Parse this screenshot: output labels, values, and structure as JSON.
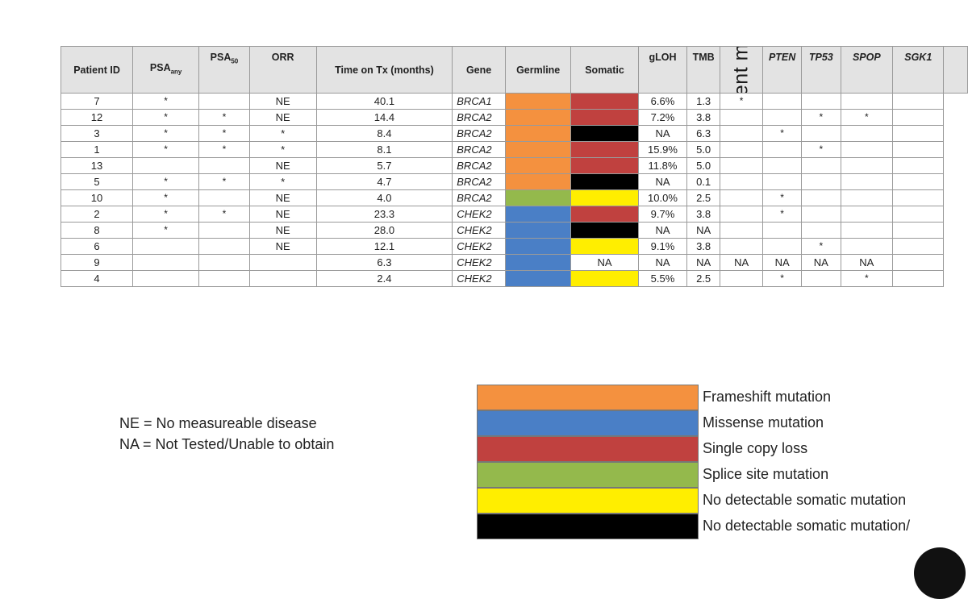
{
  "table": {
    "headers": {
      "patient_id": "Patient ID",
      "psa_any": "PSA",
      "psa_any_sub": "any",
      "psa50": "PSA",
      "psa50_sub": "50",
      "orr": "ORR",
      "time_on_tx": "Time on Tx (months)",
      "gene": "Gene",
      "germline": "Germline",
      "somatic": "Somatic",
      "gloh": "gLOH",
      "tmb": "TMB",
      "concurrent": "Concurrent mutations",
      "pten": "PTEN",
      "tp53": "TP53",
      "spop": "SPOP",
      "sgk1": "SGK1"
    },
    "rows": [
      {
        "id": "7",
        "psa_any": "*",
        "psa50": "",
        "orr": "NE",
        "time": "40.1",
        "gene": "BRCA1",
        "germline": "frameshift",
        "somatic": "single_copy_loss",
        "somatic_text": "",
        "gloh": "6.6%",
        "tmb": "1.3",
        "pten": "*",
        "tp53": "",
        "spop": "",
        "sgk1": ""
      },
      {
        "id": "12",
        "psa_any": "*",
        "psa50": "*",
        "orr": "NE",
        "time": "14.4",
        "gene": "BRCA2",
        "germline": "frameshift",
        "somatic": "single_copy_loss",
        "somatic_text": "",
        "gloh": "7.2%",
        "tmb": "3.8",
        "pten": "",
        "tp53": "",
        "spop": "*",
        "sgk1": "*"
      },
      {
        "id": "3",
        "psa_any": "*",
        "psa50": "*",
        "orr": "*",
        "time": "8.4",
        "gene": "BRCA2",
        "germline": "frameshift",
        "somatic": "no_detectable_2",
        "somatic_text": "",
        "gloh": "NA",
        "tmb": "6.3",
        "pten": "",
        "tp53": "*",
        "spop": "",
        "sgk1": ""
      },
      {
        "id": "1",
        "psa_any": "*",
        "psa50": "*",
        "orr": "*",
        "time": "8.1",
        "gene": "BRCA2",
        "germline": "frameshift",
        "somatic": "single_copy_loss",
        "somatic_text": "",
        "gloh": "15.9%",
        "tmb": "5.0",
        "pten": "",
        "tp53": "",
        "spop": "*",
        "sgk1": ""
      },
      {
        "id": "13",
        "psa_any": "",
        "psa50": "",
        "orr": "NE",
        "time": "5.7",
        "gene": "BRCA2",
        "germline": "frameshift",
        "somatic": "single_copy_loss",
        "somatic_text": "",
        "gloh": "11.8%",
        "tmb": "5.0",
        "pten": "",
        "tp53": "",
        "spop": "",
        "sgk1": ""
      },
      {
        "id": "5",
        "psa_any": "*",
        "psa50": "*",
        "orr": "*",
        "time": "4.7",
        "gene": "BRCA2",
        "germline": "frameshift",
        "somatic": "no_detectable_2",
        "somatic_text": "",
        "gloh": "NA",
        "tmb": "0.1",
        "pten": "",
        "tp53": "",
        "spop": "",
        "sgk1": ""
      },
      {
        "id": "10",
        "psa_any": "*",
        "psa50": "",
        "orr": "NE",
        "time": "4.0",
        "gene": "BRCA2",
        "germline": "splice",
        "somatic": "no_detectable",
        "somatic_text": "",
        "gloh": "10.0%",
        "tmb": "2.5",
        "pten": "",
        "tp53": "*",
        "spop": "",
        "sgk1": ""
      },
      {
        "id": "2",
        "psa_any": "*",
        "psa50": "*",
        "orr": "NE",
        "time": "23.3",
        "gene": "CHEK2",
        "germline": "missense",
        "somatic": "single_copy_loss",
        "somatic_text": "",
        "gloh": "9.7%",
        "tmb": "3.8",
        "pten": "",
        "tp53": "*",
        "spop": "",
        "sgk1": ""
      },
      {
        "id": "8",
        "psa_any": "*",
        "psa50": "",
        "orr": "NE",
        "time": "28.0",
        "gene": "CHEK2",
        "germline": "missense",
        "somatic": "no_detectable_2",
        "somatic_text": "",
        "gloh": "NA",
        "tmb": "NA",
        "pten": "",
        "tp53": "",
        "spop": "",
        "sgk1": ""
      },
      {
        "id": "6",
        "psa_any": "",
        "psa50": "",
        "orr": "NE",
        "time": "12.1",
        "gene": "CHEK2",
        "germline": "missense",
        "somatic": "no_detectable",
        "somatic_text": "",
        "gloh": "9.1%",
        "tmb": "3.8",
        "pten": "",
        "tp53": "",
        "spop": "*",
        "sgk1": ""
      },
      {
        "id": "9",
        "psa_any": "",
        "psa50": "",
        "orr": "",
        "time": "6.3",
        "gene": "CHEK2",
        "germline": "missense",
        "somatic": "none",
        "somatic_text": "NA",
        "gloh": "NA",
        "tmb": "NA",
        "pten": "NA",
        "tp53": "NA",
        "spop": "NA",
        "sgk1": "NA"
      },
      {
        "id": "4",
        "psa_any": "",
        "psa50": "",
        "orr": "",
        "time": "2.4",
        "gene": "CHEK2",
        "germline": "missense",
        "somatic": "no_detectable",
        "somatic_text": "",
        "gloh": "5.5%",
        "tmb": "2.5",
        "pten": "",
        "tp53": "*",
        "spop": "",
        "sgk1": "*"
      }
    ]
  },
  "colors": {
    "frameshift": "#f4913f",
    "missense": "#4a7fc6",
    "single_copy_loss": "#c0413f",
    "splice": "#94b94c",
    "no_detectable": "#ffee00",
    "no_detectable_2": "#000000",
    "none": "#ffffff"
  },
  "notes": {
    "ne": "NE = No measureable disease",
    "na": "NA = Not Tested/Unable to obtain"
  },
  "legend": [
    {
      "key": "frameshift",
      "label": "Frameshift mutation"
    },
    {
      "key": "missense",
      "label": "Missense mutation"
    },
    {
      "key": "single_copy_loss",
      "label": "Single copy loss"
    },
    {
      "key": "splice",
      "label": "Splice site mutation"
    },
    {
      "key": "no_detectable",
      "label": "No detectable somatic mutation"
    },
    {
      "key": "no_detectable_2",
      "label": "No detectable somatic mutation/"
    }
  ]
}
